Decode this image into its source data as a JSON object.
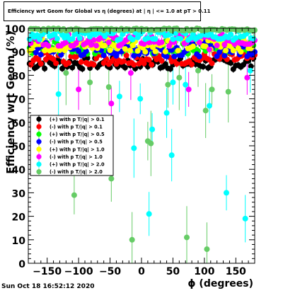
{
  "window": {
    "title": "Efficiency wrt Geom for Global vs η (degrees) at | η | <= 1.0 at pT > 0.11",
    "timestamp": "Sun Oct 18 16:52:12 2020"
  },
  "chart_data": {
    "type": "scatter",
    "title": "Efficiency wrt Geom for Global vs η (degrees) at | η | <= 1.0 at pT > 0.11",
    "xlabel": "ϕ (degrees)",
    "ylabel": "Efficiency wrt Geom (%)",
    "xlim": [
      -180,
      180
    ],
    "ylim": [
      0,
      100
    ],
    "xticks": [
      -150,
      -100,
      -50,
      0,
      50,
      100,
      150
    ],
    "yticks": [
      0,
      10,
      20,
      30,
      40,
      50,
      60,
      70,
      80,
      90,
      100
    ],
    "xtick_labels": [
      "−150",
      "−100",
      "−50",
      "0",
      "50",
      "100",
      "150"
    ],
    "grid": false,
    "legend_position": "left-middle",
    "series": [
      {
        "name": "(+) with p T/|q| > 0.1",
        "color": "#000000",
        "base": 85,
        "spread": 2.5,
        "err": 1.5
      },
      {
        "name": "(-) with p T/|q| > 0.1",
        "color": "#ff0000",
        "base": 87,
        "spread": 2.5,
        "err": 1.5
      },
      {
        "name": "(+) with p T/|q| > 0.5",
        "color": "#00ff00",
        "base": 92,
        "spread": 3,
        "err": 2
      },
      {
        "name": "(-) with p T/|q| > 0.5",
        "color": "#0000ff",
        "base": 91,
        "spread": 3,
        "err": 2
      },
      {
        "name": "(+) with p T/|q| > 1.0",
        "color": "#ffff00",
        "base": 93,
        "spread": 3,
        "err": 2
      },
      {
        "name": "(-) with p T/|q| > 1.0",
        "color": "#ff00ff",
        "base": 95,
        "spread": 2.5,
        "err": 2,
        "outliers": [
          [
            -100,
            74
          ],
          [
            -48,
            68
          ],
          [
            -17,
            81
          ],
          [
            75,
            74
          ],
          [
            108,
            91
          ],
          [
            168,
            79
          ]
        ]
      },
      {
        "name": "(+) with p T/|q| > 2.0",
        "color": "#00ffff",
        "base": 97,
        "spread": 2,
        "err": 2,
        "outliers": [
          [
            -132,
            72
          ],
          [
            -35,
            71
          ],
          [
            -12,
            49
          ],
          [
            -2,
            70
          ],
          [
            12,
            21
          ],
          [
            17,
            57
          ],
          [
            40,
            64
          ],
          [
            48,
            46
          ],
          [
            50,
            77
          ],
          [
            70,
            76
          ],
          [
            108,
            67
          ],
          [
            135,
            30
          ],
          [
            165,
            19
          ],
          [
            173,
            82
          ]
        ]
      },
      {
        "name": "(-) with p T/|q| > 2.0",
        "color": "#66cc66",
        "base": 99.5,
        "spread": 0.5,
        "err": 1,
        "outliers": [
          [
            -107,
            29
          ],
          [
            -120,
            81
          ],
          [
            -82,
            77
          ],
          [
            -52,
            75
          ],
          [
            -48,
            36
          ],
          [
            -15,
            10
          ],
          [
            10,
            52
          ],
          [
            15,
            51
          ],
          [
            42,
            76
          ],
          [
            60,
            79
          ],
          [
            72,
            11
          ],
          [
            90,
            82
          ],
          [
            102,
            65
          ],
          [
            104,
            6
          ],
          [
            112,
            74
          ],
          [
            138,
            73
          ]
        ]
      }
    ]
  }
}
